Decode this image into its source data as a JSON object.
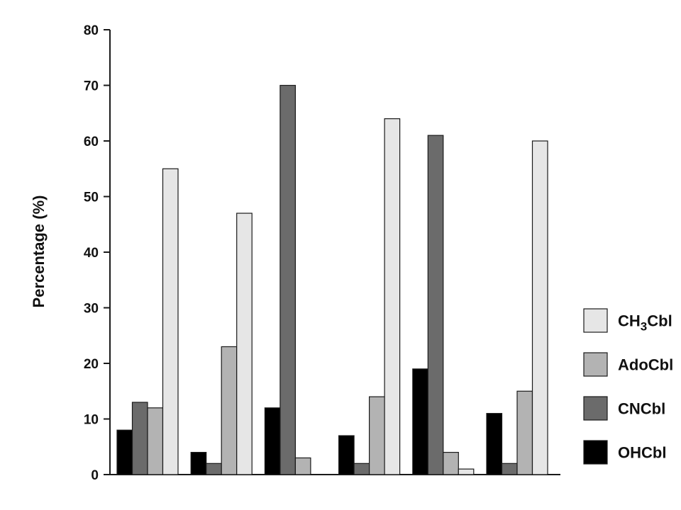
{
  "chart_data": {
    "type": "bar",
    "title": "",
    "xlabel": "",
    "ylabel": "Percentage (%)",
    "ylim": [
      0,
      80
    ],
    "yticks": [
      0,
      10,
      20,
      30,
      40,
      50,
      60,
      70,
      80
    ],
    "categories": [
      "",
      "",
      "",
      "",
      "",
      ""
    ],
    "series": [
      {
        "name": "OHCbl",
        "color": "#000000",
        "values": [
          8,
          4,
          12,
          7,
          19,
          11
        ]
      },
      {
        "name": "CNCbl",
        "color": "#6b6b6b",
        "values": [
          13,
          2,
          70,
          2,
          61,
          2
        ]
      },
      {
        "name": "AdoCbl",
        "color": "#b3b3b3",
        "values": [
          12,
          23,
          3,
          14,
          4,
          15
        ]
      },
      {
        "name": "CH3Cbl",
        "color": "#e6e6e6",
        "values": [
          55,
          47,
          0,
          64,
          1,
          60
        ]
      }
    ],
    "grid": false,
    "legend_position": "right"
  },
  "legend": [
    {
      "base": "CH",
      "sub": "3",
      "rest": "Cbl",
      "color": "#e6e6e6"
    },
    {
      "base": "AdoCbl",
      "sub": "",
      "rest": "",
      "color": "#b3b3b3"
    },
    {
      "base": "CNCbl",
      "sub": "",
      "rest": "",
      "color": "#6b6b6b"
    },
    {
      "base": "OHCbl",
      "sub": "",
      "rest": "",
      "color": "#000000"
    }
  ]
}
